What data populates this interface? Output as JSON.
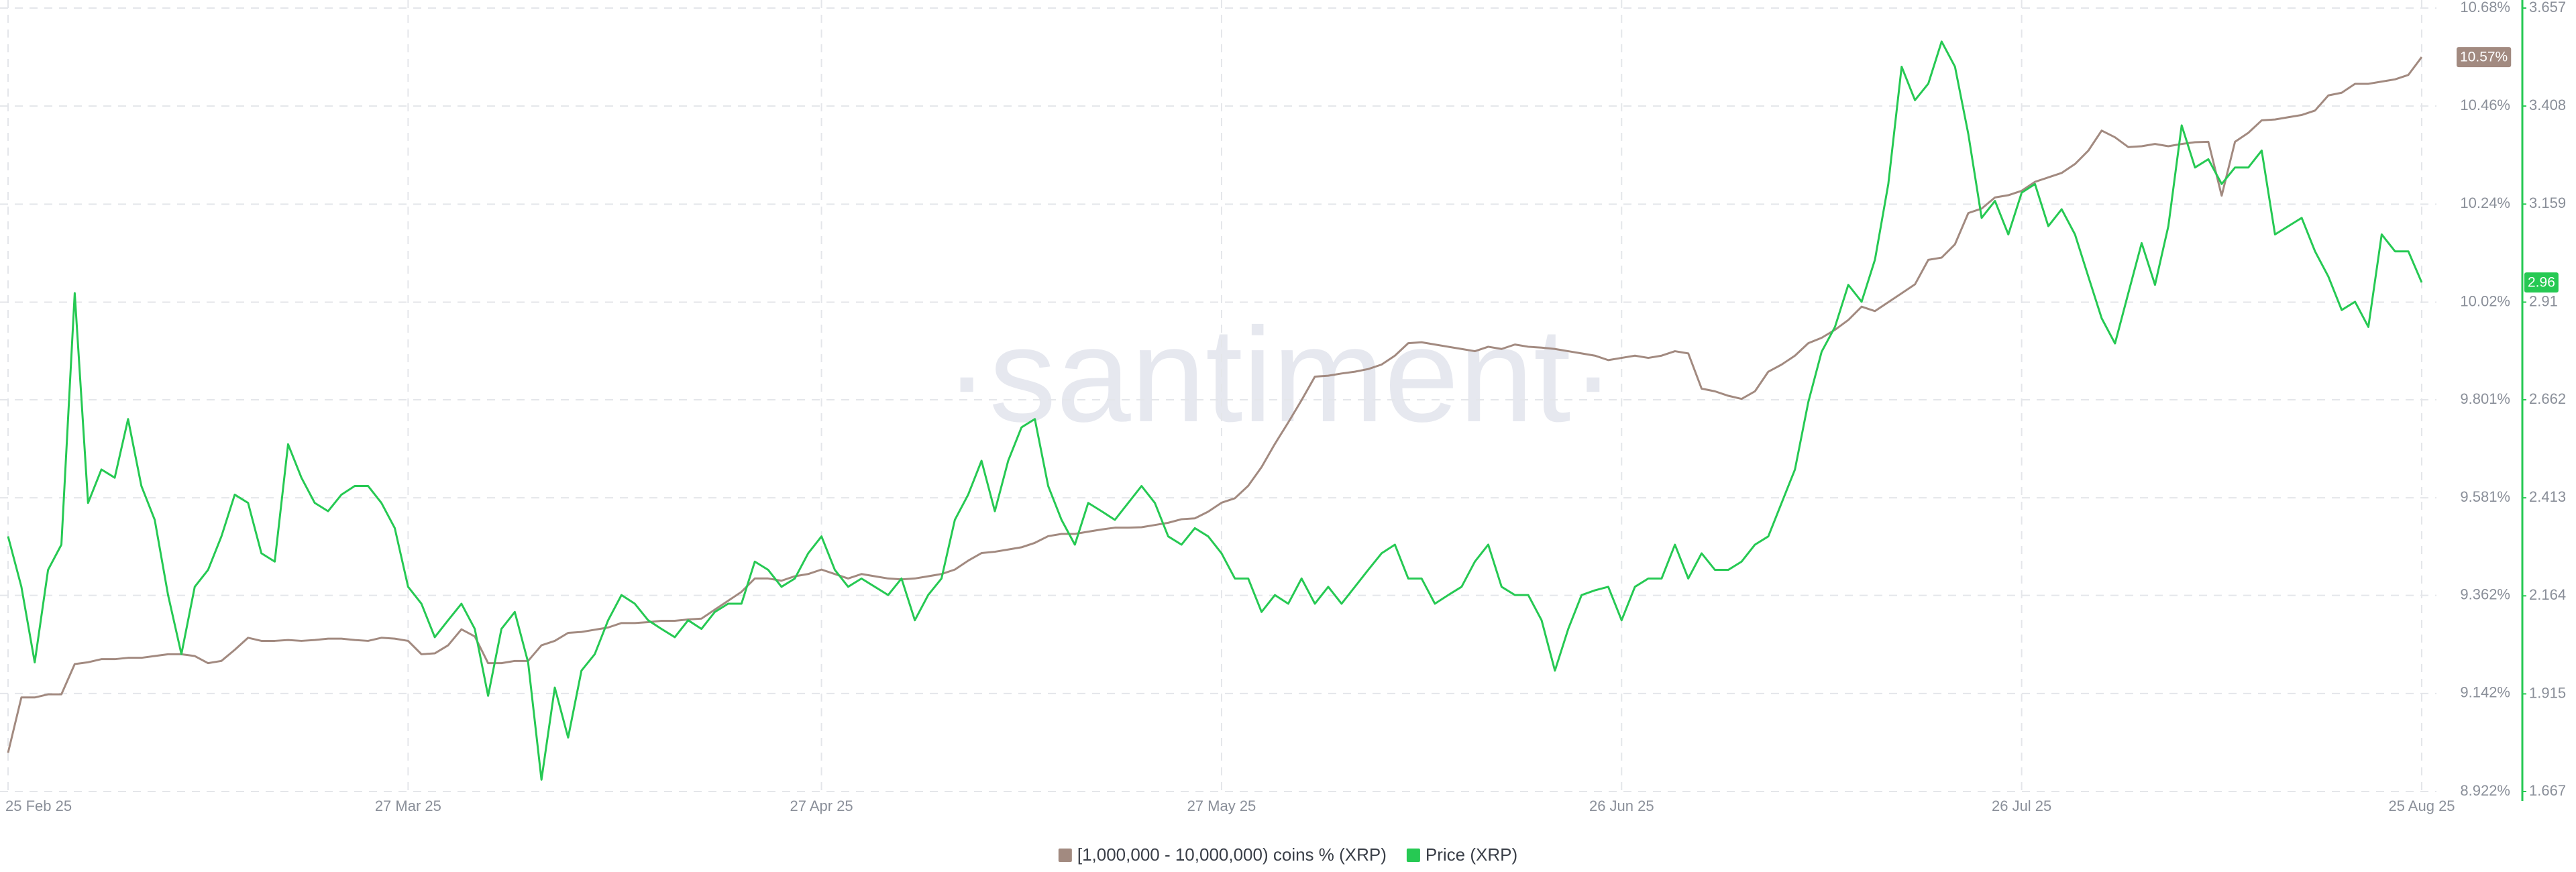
{
  "chart_data": {
    "type": "line",
    "watermark": "·santiment·",
    "x": [
      "25 Feb 25",
      "26 Feb 25",
      "27 Feb 25",
      "28 Feb 25",
      "1 Mar 25",
      "2 Mar 25",
      "3 Mar 25",
      "4 Mar 25",
      "5 Mar 25",
      "6 Mar 25",
      "7 Mar 25",
      "8 Mar 25",
      "9 Mar 25",
      "10 Mar 25",
      "11 Mar 25",
      "12 Mar 25",
      "13 Mar 25",
      "14 Mar 25",
      "15 Mar 25",
      "16 Mar 25",
      "17 Mar 25",
      "18 Mar 25",
      "19 Mar 25",
      "20 Mar 25",
      "21 Mar 25",
      "22 Mar 25",
      "23 Mar 25",
      "24 Mar 25",
      "25 Mar 25",
      "26 Mar 25",
      "27 Mar 25",
      "28 Mar 25",
      "29 Mar 25",
      "30 Mar 25",
      "31 Mar 25",
      "1 Apr 25",
      "2 Apr 25",
      "3 Apr 25",
      "4 Apr 25",
      "5 Apr 25",
      "6 Apr 25",
      "7 Apr 25",
      "8 Apr 25",
      "9 Apr 25",
      "10 Apr 25",
      "11 Apr 25",
      "12 Apr 25",
      "13 Apr 25",
      "14 Apr 25",
      "15 Apr 25",
      "16 Apr 25",
      "17 Apr 25",
      "18 Apr 25",
      "19 Apr 25",
      "20 Apr 25",
      "21 Apr 25",
      "22 Apr 25",
      "23 Apr 25",
      "24 Apr 25",
      "25 Apr 25",
      "26 Apr 25",
      "27 Apr 25",
      "28 Apr 25",
      "29 Apr 25",
      "30 Apr 25",
      "1 May 25",
      "2 May 25",
      "3 May 25",
      "4 May 25",
      "5 May 25",
      "6 May 25",
      "7 May 25",
      "8 May 25",
      "9 May 25",
      "10 May 25",
      "11 May 25",
      "12 May 25",
      "13 May 25",
      "14 May 25",
      "15 May 25",
      "16 May 25",
      "17 May 25",
      "18 May 25",
      "19 May 25",
      "20 May 25",
      "21 May 25",
      "22 May 25",
      "23 May 25",
      "24 May 25",
      "25 May 25",
      "26 May 25",
      "27 May 25",
      "28 May 25",
      "29 May 25",
      "30 May 25",
      "31 May 25",
      "1 Jun 25",
      "2 Jun 25",
      "3 Jun 25",
      "4 Jun 25",
      "5 Jun 25",
      "6 Jun 25",
      "7 Jun 25",
      "8 Jun 25",
      "9 Jun 25",
      "10 Jun 25",
      "11 Jun 25",
      "12 Jun 25",
      "13 Jun 25",
      "14 Jun 25",
      "15 Jun 25",
      "16 Jun 25",
      "17 Jun 25",
      "18 Jun 25",
      "19 Jun 25",
      "20 Jun 25",
      "21 Jun 25",
      "22 Jun 25",
      "23 Jun 25",
      "24 Jun 25",
      "25 Jun 25",
      "26 Jun 25",
      "27 Jun 25",
      "28 Jun 25",
      "29 Jun 25",
      "30 Jun 25",
      "1 Jul 25",
      "2 Jul 25",
      "3 Jul 25",
      "4 Jul 25",
      "5 Jul 25",
      "6 Jul 25",
      "7 Jul 25",
      "8 Jul 25",
      "9 Jul 25",
      "10 Jul 25",
      "11 Jul 25",
      "12 Jul 25",
      "13 Jul 25",
      "14 Jul 25",
      "15 Jul 25",
      "16 Jul 25",
      "17 Jul 25",
      "18 Jul 25",
      "19 Jul 25",
      "20 Jul 25",
      "21 Jul 25",
      "22 Jul 25",
      "23 Jul 25",
      "24 Jul 25",
      "25 Jul 25",
      "26 Jul 25",
      "27 Jul 25",
      "28 Jul 25",
      "29 Jul 25",
      "30 Jul 25",
      "31 Jul 25",
      "1 Aug 25",
      "2 Aug 25",
      "3 Aug 25",
      "4 Aug 25",
      "5 Aug 25",
      "6 Aug 25",
      "7 Aug 25",
      "8 Aug 25",
      "9 Aug 25",
      "10 Aug 25",
      "11 Aug 25",
      "12 Aug 25",
      "13 Aug 25",
      "14 Aug 25",
      "15 Aug 25",
      "16 Aug 25",
      "17 Aug 25",
      "18 Aug 25",
      "19 Aug 25",
      "20 Aug 25",
      "21 Aug 25",
      "22 Aug 25",
      "23 Aug 25",
      "24 Aug 25",
      "25 Aug 25"
    ],
    "xticks": [
      "25 Feb 25",
      "27 Mar 25",
      "27 Apr 25",
      "27 May 25",
      "26 Jun 25",
      "26 Jul 25",
      "25 Aug 25"
    ],
    "ylim": [
      8.922,
      10.68
    ],
    "yticks": [
      {
        "value": 10.68,
        "label": "10.68%"
      },
      {
        "value": 10.46,
        "label": "10.46%"
      },
      {
        "value": 10.24,
        "label": "10.24%"
      },
      {
        "value": 10.02,
        "label": "10.02%"
      },
      {
        "value": 9.801,
        "label": "9.801%"
      },
      {
        "value": 9.581,
        "label": "9.581%"
      },
      {
        "value": 9.362,
        "label": "9.362%"
      },
      {
        "value": 9.142,
        "label": "9.142%"
      },
      {
        "value": 8.922,
        "label": "8.922%"
      }
    ],
    "y2lim": [
      1.667,
      3.657
    ],
    "y2ticks": [
      3.657,
      3.408,
      3.159,
      2.91,
      2.662,
      2.413,
      2.164,
      1.915,
      1.667
    ],
    "grid": true,
    "series": [
      {
        "name": "[1,000,000 - 10,000,000) coins % (XRP)",
        "color": "#a28a80",
        "last_value_label": "10.57%",
        "values": [
          9.009,
          9.133,
          9.133,
          9.14,
          9.14,
          9.208,
          9.212,
          9.219,
          9.219,
          9.222,
          9.222,
          9.226,
          9.23,
          9.23,
          9.226,
          9.21,
          9.215,
          9.24,
          9.267,
          9.26,
          9.26,
          9.262,
          9.26,
          9.262,
          9.265,
          9.265,
          9.262,
          9.26,
          9.267,
          9.265,
          9.26,
          9.23,
          9.232,
          9.25,
          9.286,
          9.27,
          9.21,
          9.21,
          9.215,
          9.215,
          9.25,
          9.26,
          9.278,
          9.28,
          9.285,
          9.29,
          9.3,
          9.3,
          9.302,
          9.305,
          9.305,
          9.308,
          9.31,
          9.33,
          9.35,
          9.37,
          9.4,
          9.4,
          9.395,
          9.405,
          9.41,
          9.42,
          9.41,
          9.4,
          9.41,
          9.405,
          9.4,
          9.398,
          9.4,
          9.405,
          9.41,
          9.42,
          9.44,
          9.457,
          9.46,
          9.465,
          9.47,
          9.48,
          9.495,
          9.5,
          9.5,
          9.505,
          9.51,
          9.514,
          9.514,
          9.515,
          9.52,
          9.525,
          9.533,
          9.535,
          9.55,
          9.57,
          9.58,
          9.608,
          9.65,
          9.702,
          9.75,
          9.8,
          9.853,
          9.855,
          9.86,
          9.864,
          9.87,
          9.88,
          9.9,
          9.928,
          9.93,
          9.925,
          9.92,
          9.915,
          9.91,
          9.92,
          9.915,
          9.925,
          9.92,
          9.918,
          9.915,
          9.91,
          9.905,
          9.9,
          9.89,
          9.895,
          9.9,
          9.895,
          9.9,
          9.91,
          9.905,
          9.826,
          9.82,
          9.81,
          9.803,
          9.82,
          9.864,
          9.88,
          9.9,
          9.928,
          9.94,
          9.958,
          9.98,
          10.01,
          10.0,
          10.02,
          10.04,
          10.06,
          10.115,
          10.12,
          10.15,
          10.22,
          10.23,
          10.255,
          10.26,
          10.27,
          10.29,
          10.3,
          10.31,
          10.33,
          10.36,
          10.405,
          10.39,
          10.368,
          10.37,
          10.375,
          10.37,
          10.375,
          10.379,
          10.38,
          10.259,
          10.38,
          10.4,
          10.428,
          10.43,
          10.435,
          10.44,
          10.45,
          10.484,
          10.49,
          10.51,
          10.51,
          10.515,
          10.52,
          10.53,
          10.57
        ]
      },
      {
        "name": "Price (XRP)",
        "color": "#26c953",
        "axis": "y2",
        "values": [
          2.315,
          2.187,
          1.995,
          2.23,
          2.294,
          2.933,
          2.4,
          2.485,
          2.464,
          2.613,
          2.443,
          2.357,
          2.166,
          2.016,
          2.187,
          2.23,
          2.315,
          2.421,
          2.4,
          2.272,
          2.251,
          2.549,
          2.464,
          2.4,
          2.379,
          2.421,
          2.443,
          2.443,
          2.4,
          2.336,
          2.187,
          2.144,
          2.059,
          2.102,
          2.144,
          2.08,
          1.91,
          2.08,
          2.123,
          1.995,
          1.697,
          1.931,
          1.804,
          1.974,
          2.016,
          2.102,
          2.166,
          2.144,
          2.102,
          2.08,
          2.059,
          2.102,
          2.08,
          2.123,
          2.144,
          2.144,
          2.251,
          2.23,
          2.187,
          2.208,
          2.272,
          2.315,
          2.23,
          2.187,
          2.208,
          2.187,
          2.166,
          2.208,
          2.102,
          2.166,
          2.208,
          2.357,
          2.421,
          2.507,
          2.379,
          2.507,
          2.592,
          2.613,
          2.443,
          2.357,
          2.294,
          2.4,
          2.379,
          2.357,
          2.4,
          2.443,
          2.4,
          2.315,
          2.294,
          2.336,
          2.315,
          2.272,
          2.208,
          2.208,
          2.123,
          2.166,
          2.144,
          2.208,
          2.144,
          2.187,
          2.144,
          2.187,
          2.23,
          2.272,
          2.294,
          2.208,
          2.208,
          2.144,
          2.166,
          2.187,
          2.251,
          2.294,
          2.187,
          2.166,
          2.166,
          2.102,
          1.974,
          2.08,
          2.166,
          2.178,
          2.187,
          2.102,
          2.187,
          2.208,
          2.208,
          2.294,
          2.208,
          2.272,
          2.23,
          2.23,
          2.251,
          2.294,
          2.315,
          2.4,
          2.485,
          2.656,
          2.784,
          2.847,
          2.954,
          2.911,
          3.018,
          3.21,
          3.508,
          3.423,
          3.465,
          3.572,
          3.508,
          3.337,
          3.124,
          3.167,
          3.082,
          3.188,
          3.21,
          3.103,
          3.146,
          3.082,
          2.975,
          2.869,
          2.805,
          2.933,
          3.06,
          2.954,
          3.103,
          3.359,
          3.252,
          3.273,
          3.21,
          3.252,
          3.252,
          3.295,
          3.082,
          3.103,
          3.124,
          3.039,
          2.975,
          2.89,
          2.911,
          2.847,
          3.082,
          3.039,
          3.039,
          2.96
        ]
      }
    ]
  }
}
